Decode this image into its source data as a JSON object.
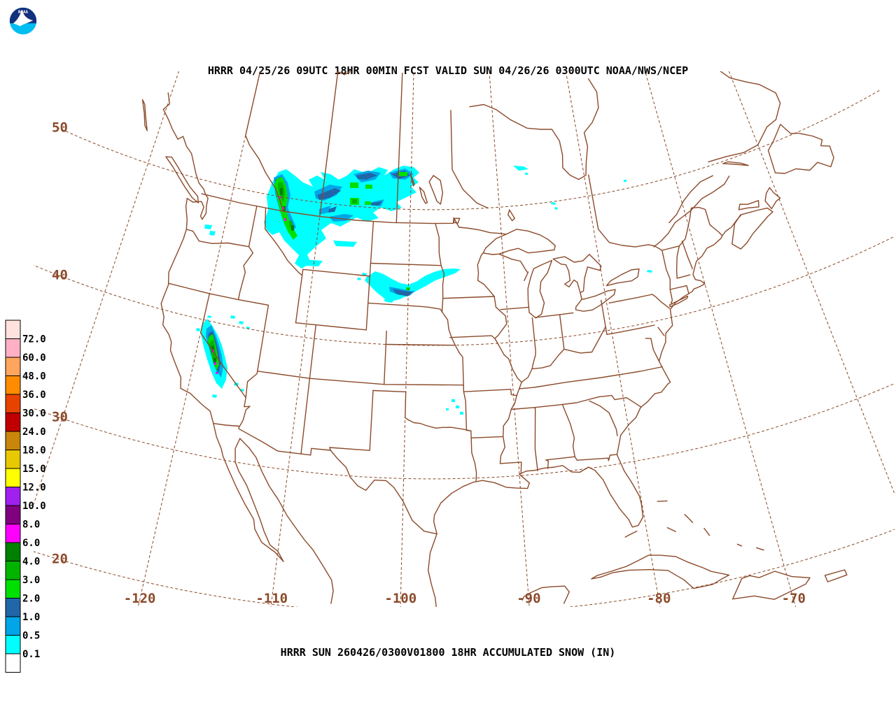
{
  "header": {
    "title": "HRRR 04/25/26 09UTC 18HR 00MIN FCST VALID SUN 04/26/26 0300UTC NOAA/NWS/NCEP"
  },
  "footer": {
    "caption": "HRRR SUN 260426/0300V01800 18HR ACCUMULATED SNOW (IN)"
  },
  "logo": {
    "label": "NOAA",
    "colors": {
      "navy": "#12307C",
      "cyan": "#00BDF2",
      "white": "#FFFFFF"
    }
  },
  "map": {
    "line_color": "#8B4A2A",
    "graticule": {
      "lat_labels": [
        {
          "lat": 50,
          "text": "50"
        },
        {
          "lat": 40,
          "text": "40"
        },
        {
          "lat": 30,
          "text": "30"
        },
        {
          "lat": 20,
          "text": "20"
        }
      ],
      "lon_labels": [
        {
          "lon": -120,
          "text": "-120"
        },
        {
          "lon": -110,
          "text": "-110"
        },
        {
          "lon": -100,
          "text": "-100"
        },
        {
          "lon": -90,
          "text": "-90"
        },
        {
          "lon": -80,
          "text": "-80"
        },
        {
          "lon": -70,
          "text": "-70"
        }
      ]
    },
    "snow_palette": {
      "0.1": "#00FFFF",
      "0.5": "#00A6E8",
      "1.0": "#2066A8",
      "2.0": "#00E000",
      "3.0": "#00B400",
      "4.0": "#008000",
      "6.0": "#FF00FF"
    },
    "snow_regions": [
      {
        "name": "montana-alberta-saskatchewan",
        "description": "Broad area of accumulating snow over northern Montana and the Alberta/Saskatchewan border region",
        "max_value_in": "6.0+"
      },
      {
        "name": "sierra-nevada-california",
        "description": "Narrow snow band along the California Sierra Nevada",
        "max_value_in": "6.0+"
      },
      {
        "name": "central-south-dakota",
        "description": "Snow band over central South Dakota",
        "max_value_in": "2.0"
      },
      {
        "name": "isolated-light-amounts",
        "description": "Scattered light amounts over the Washington Cascades, Saskatchewan, Manitoba, Ontario, Oklahoma and Pennsylvania",
        "max_value_in": "0.5"
      }
    ]
  },
  "colorbar": {
    "units": "inches",
    "segments": [
      {
        "color": "#FFE2DE",
        "label_below": "72.0"
      },
      {
        "color": "#FFB0C4",
        "label_below": "60.0"
      },
      {
        "color": "#FFA55E",
        "label_below": "48.0"
      },
      {
        "color": "#FF8C00",
        "label_below": "36.0"
      },
      {
        "color": "#E84200",
        "label_below": "30.0"
      },
      {
        "color": "#C00000",
        "label_below": "24.0"
      },
      {
        "color": "#C8860A",
        "label_below": "18.0"
      },
      {
        "color": "#E8C800",
        "label_below": "15.0"
      },
      {
        "color": "#FFFF00",
        "label_below": "12.0"
      },
      {
        "color": "#A020F0",
        "label_below": "10.0"
      },
      {
        "color": "#800080",
        "label_below": "8.0"
      },
      {
        "color": "#FF00FF",
        "label_below": "6.0"
      },
      {
        "color": "#008000",
        "label_below": "4.0"
      },
      {
        "color": "#00B400",
        "label_below": "3.0"
      },
      {
        "color": "#00E000",
        "label_below": "2.0"
      },
      {
        "color": "#2066A8",
        "label_below": "1.0"
      },
      {
        "color": "#00A6E8",
        "label_below": "0.5"
      },
      {
        "color": "#00FFFF",
        "label_below": "0.1"
      },
      {
        "color": "#FFFFFF",
        "label_below": ""
      }
    ]
  }
}
